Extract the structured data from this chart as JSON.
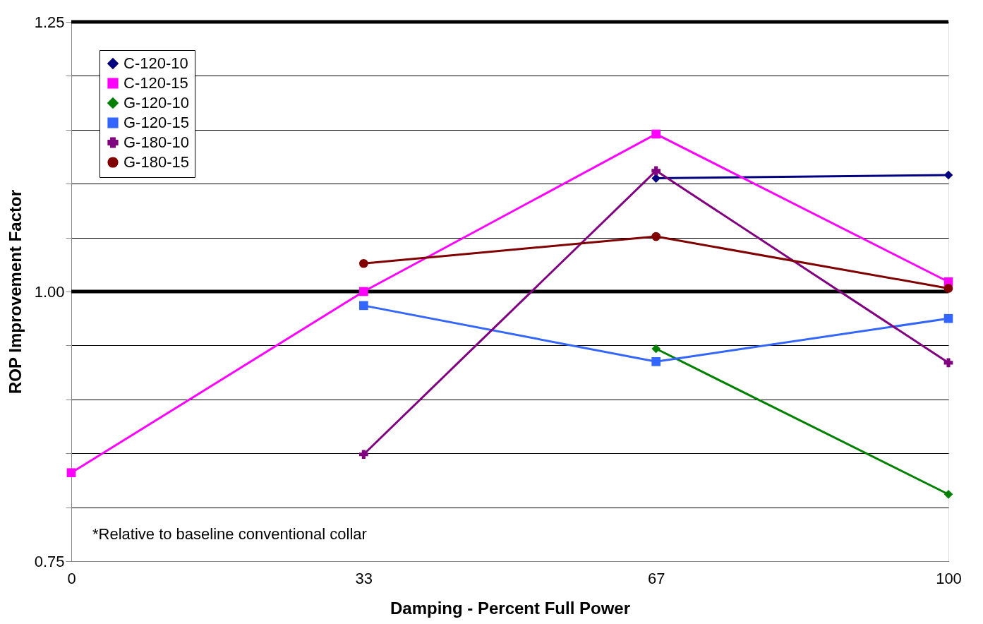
{
  "chart_data": {
    "type": "line",
    "xlabel": "Damping - Percent Full Power",
    "ylabel": "ROP Improvement Factor",
    "categories": [
      "0",
      "33",
      "67",
      "100"
    ],
    "series": [
      {
        "name": "C-120-10",
        "color": "#000080",
        "marker": "diamond",
        "values": [
          null,
          null,
          1.105,
          1.108
        ]
      },
      {
        "name": "C-120-15",
        "color": "#ff00ff",
        "marker": "square",
        "values": [
          0.832,
          1.0,
          1.146,
          1.009
        ]
      },
      {
        "name": "G-120-10",
        "color": "#008000",
        "marker": "diamond",
        "values": [
          null,
          null,
          0.947,
          0.812
        ]
      },
      {
        "name": "G-120-15",
        "color": "#3366ff",
        "marker": "square",
        "values": [
          null,
          0.987,
          0.935,
          0.975
        ]
      },
      {
        "name": "G-180-10",
        "color": "#800080",
        "marker": "cross",
        "values": [
          null,
          0.849,
          1.112,
          0.934
        ]
      },
      {
        "name": "G-180-15",
        "color": "#800000",
        "marker": "circle",
        "values": [
          null,
          1.026,
          1.051,
          1.003
        ]
      }
    ],
    "ylim": [
      0.75,
      1.25
    ],
    "yticks": [
      0.75,
      {
        "value": 0.8,
        "label": null
      },
      {
        "value": 0.85,
        "label": null
      },
      {
        "value": 0.9,
        "label": null
      },
      {
        "value": 0.95,
        "label": null
      },
      "1.00",
      {
        "value": 1.05,
        "label": null
      },
      {
        "value": 1.1,
        "label": null
      },
      {
        "value": 1.15,
        "label": null
      },
      {
        "value": 1.2,
        "label": null
      },
      1.25
    ],
    "ref_lines": [
      {
        "axis": "y",
        "value": 1.0,
        "label": null,
        "color": "#000000"
      },
      {
        "axis": "y",
        "value": 1.25,
        "label": null,
        "color": "#000000"
      }
    ],
    "grid": "y",
    "legend": "top left",
    "line_style": "solid",
    "annotations": [
      "*Relative to baseline conventional collar"
    ]
  }
}
